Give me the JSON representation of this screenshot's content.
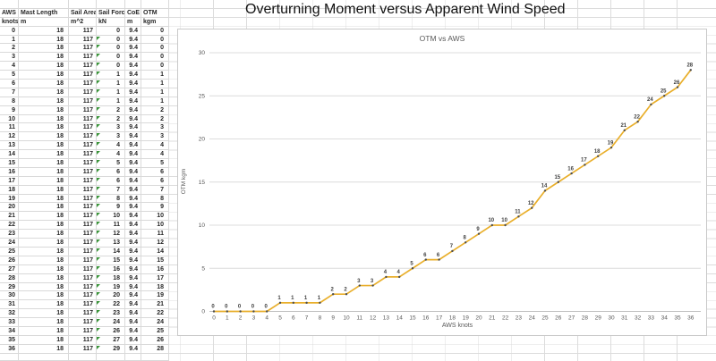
{
  "app": {
    "main_title": "Overturning Moment versus Apparent Wind Speed"
  },
  "table": {
    "headers": [
      "AWS",
      "Mast Length",
      "Sail Area",
      "Sail Force",
      "CoE",
      "OTM"
    ],
    "units": [
      "knots",
      "m",
      "m^2",
      "kN",
      "m",
      "kgm"
    ],
    "error_flag_color": "#379437",
    "rows": [
      [
        "0",
        "18",
        "117",
        "0",
        "9.4",
        "0"
      ],
      [
        "1",
        "18",
        "117",
        "0",
        "9.4",
        "0"
      ],
      [
        "2",
        "18",
        "117",
        "0",
        "9.4",
        "0"
      ],
      [
        "3",
        "18",
        "117",
        "0",
        "9.4",
        "0"
      ],
      [
        "4",
        "18",
        "117",
        "0",
        "9.4",
        "0"
      ],
      [
        "5",
        "18",
        "117",
        "1",
        "9.4",
        "1"
      ],
      [
        "6",
        "18",
        "117",
        "1",
        "9.4",
        "1"
      ],
      [
        "7",
        "18",
        "117",
        "1",
        "9.4",
        "1"
      ],
      [
        "8",
        "18",
        "117",
        "1",
        "9.4",
        "1"
      ],
      [
        "9",
        "18",
        "117",
        "2",
        "9.4",
        "2"
      ],
      [
        "10",
        "18",
        "117",
        "2",
        "9.4",
        "2"
      ],
      [
        "11",
        "18",
        "117",
        "3",
        "9.4",
        "3"
      ],
      [
        "12",
        "18",
        "117",
        "3",
        "9.4",
        "3"
      ],
      [
        "13",
        "18",
        "117",
        "4",
        "9.4",
        "4"
      ],
      [
        "14",
        "18",
        "117",
        "4",
        "9.4",
        "4"
      ],
      [
        "15",
        "18",
        "117",
        "5",
        "9.4",
        "5"
      ],
      [
        "16",
        "18",
        "117",
        "6",
        "9.4",
        "6"
      ],
      [
        "17",
        "18",
        "117",
        "6",
        "9.4",
        "6"
      ],
      [
        "18",
        "18",
        "117",
        "7",
        "9.4",
        "7"
      ],
      [
        "19",
        "18",
        "117",
        "8",
        "9.4",
        "8"
      ],
      [
        "20",
        "18",
        "117",
        "9",
        "9.4",
        "9"
      ],
      [
        "21",
        "18",
        "117",
        "10",
        "9.4",
        "10"
      ],
      [
        "22",
        "18",
        "117",
        "11",
        "9.4",
        "10"
      ],
      [
        "23",
        "18",
        "117",
        "12",
        "9.4",
        "11"
      ],
      [
        "24",
        "18",
        "117",
        "13",
        "9.4",
        "12"
      ],
      [
        "25",
        "18",
        "117",
        "14",
        "9.4",
        "14"
      ],
      [
        "26",
        "18",
        "117",
        "15",
        "9.4",
        "15"
      ],
      [
        "27",
        "18",
        "117",
        "16",
        "9.4",
        "16"
      ],
      [
        "28",
        "18",
        "117",
        "18",
        "9.4",
        "17"
      ],
      [
        "29",
        "18",
        "117",
        "19",
        "9.4",
        "18"
      ],
      [
        "30",
        "18",
        "117",
        "20",
        "9.4",
        "19"
      ],
      [
        "31",
        "18",
        "117",
        "22",
        "9.4",
        "21"
      ],
      [
        "32",
        "18",
        "117",
        "23",
        "9.4",
        "22"
      ],
      [
        "33",
        "18",
        "117",
        "24",
        "9.4",
        "24"
      ],
      [
        "34",
        "18",
        "117",
        "26",
        "9.4",
        "25"
      ],
      [
        "35",
        "18",
        "117",
        "27",
        "9.4",
        "26"
      ],
      [
        "36",
        "18",
        "117",
        "29",
        "9.4",
        "28"
      ]
    ]
  },
  "chart_data": {
    "type": "line",
    "title": "OTM vs AWS",
    "xlabel": "AWS knots",
    "ylabel": "OTM kgm",
    "x": [
      0,
      1,
      2,
      3,
      4,
      5,
      6,
      7,
      8,
      9,
      10,
      11,
      12,
      13,
      14,
      15,
      16,
      17,
      18,
      19,
      20,
      21,
      22,
      23,
      24,
      25,
      26,
      27,
      28,
      29,
      30,
      31,
      32,
      33,
      34,
      35,
      36
    ],
    "series": [
      {
        "name": "OTM",
        "values": [
          0,
          0,
          0,
          0,
          0,
          1,
          1,
          1,
          1,
          2,
          2,
          3,
          3,
          4,
          4,
          5,
          6,
          6,
          7,
          8,
          9,
          10,
          10,
          11,
          12,
          14,
          15,
          16,
          17,
          18,
          19,
          21,
          22,
          24,
          25,
          26,
          28
        ]
      }
    ],
    "ylim": [
      0,
      30
    ],
    "yticks": [
      0,
      5,
      10,
      15,
      20,
      25,
      30
    ],
    "grid": true,
    "data_labels": true,
    "legend": "none",
    "colors": {
      "line": "#E9AF2B",
      "marker": "#4D4D4D",
      "data_label": "#3F3F3F",
      "gridline": "#DCDCDC",
      "axis": "#BFBFBF",
      "tick_text": "#595959"
    }
  }
}
